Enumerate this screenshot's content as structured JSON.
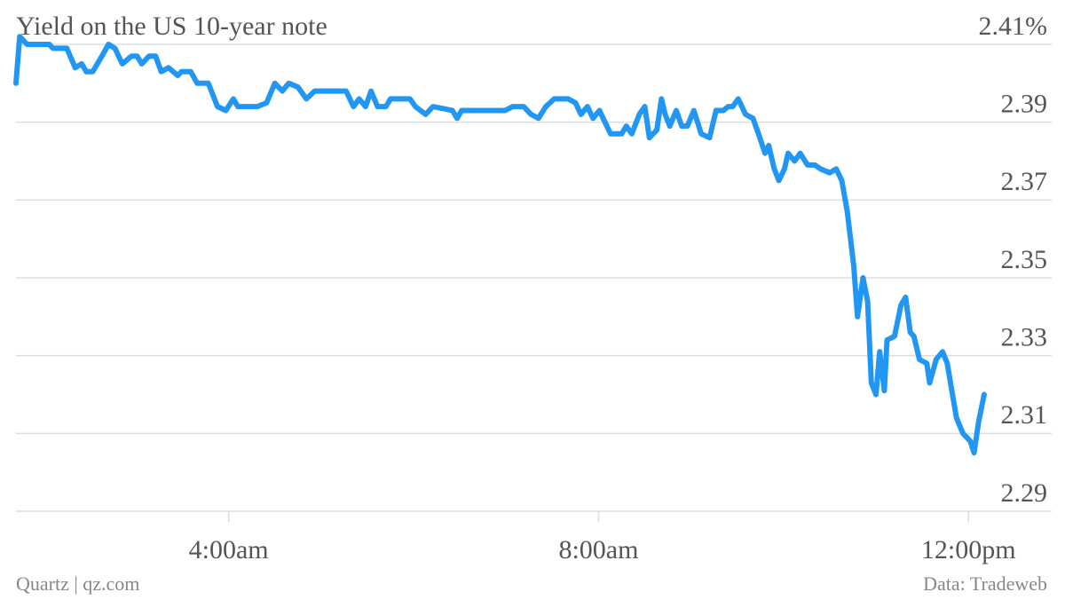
{
  "chart_data": {
    "type": "line",
    "title": "Yield on the US 10-year note",
    "credit": "Quartz | qz.com",
    "source": "Data: Tradeweb",
    "color": "#2196f3",
    "grid": true,
    "x": [
      1.7,
      1.74,
      1.82,
      2.06,
      2.1,
      2.25,
      2.34,
      2.41,
      2.46,
      2.53,
      2.63,
      2.7,
      2.77,
      2.85,
      2.95,
      3.01,
      3.06,
      3.14,
      3.21,
      3.27,
      3.35,
      3.45,
      3.49,
      3.59,
      3.66,
      3.78,
      3.88,
      3.97,
      4.05,
      4.1,
      4.26,
      4.31,
      4.41,
      4.5,
      4.58,
      4.65,
      4.75,
      4.84,
      4.93,
      5.27,
      5.35,
      5.41,
      5.48,
      5.54,
      5.61,
      5.7,
      5.75,
      5.96,
      6.02,
      6.13,
      6.21,
      6.42,
      6.47,
      6.52,
      6.99,
      7.07,
      7.19,
      7.27,
      7.35,
      7.43,
      7.52,
      7.6,
      7.67,
      7.75,
      7.81,
      7.88,
      7.94,
      8.01,
      8.05,
      8.13,
      8.25,
      8.3,
      8.36,
      8.44,
      8.5,
      8.55,
      8.63,
      8.68,
      8.72,
      8.77,
      8.84,
      8.9,
      8.96,
      9.03,
      9.11,
      9.2,
      9.27,
      9.35,
      9.4,
      9.45,
      9.51,
      9.59,
      9.67,
      9.73,
      9.8,
      9.84,
      9.9,
      9.95,
      10.01,
      10.05,
      10.12,
      10.18,
      10.26,
      10.34,
      10.4,
      10.5,
      10.57,
      10.63,
      10.69,
      10.76,
      10.8,
      10.86,
      10.91,
      10.95,
      11.0,
      11.04,
      11.09,
      11.12,
      11.2,
      11.27,
      11.32,
      11.37,
      11.41,
      11.47,
      11.55,
      11.58,
      11.65,
      11.72,
      11.77,
      11.82,
      11.87,
      11.94,
      12.02,
      12.06,
      12.11,
      12.17
    ],
    "values": [
      2.4,
      2.412,
      2.41,
      2.41,
      2.409,
      2.409,
      2.404,
      2.405,
      2.403,
      2.403,
      2.407,
      2.41,
      2.409,
      2.405,
      2.407,
      2.407,
      2.405,
      2.407,
      2.407,
      2.403,
      2.404,
      2.402,
      2.403,
      2.403,
      2.4,
      2.4,
      2.394,
      2.393,
      2.396,
      2.394,
      2.394,
      2.394,
      2.395,
      2.4,
      2.398,
      2.4,
      2.399,
      2.396,
      2.398,
      2.398,
      2.394,
      2.396,
      2.394,
      2.398,
      2.394,
      2.394,
      2.396,
      2.396,
      2.394,
      2.392,
      2.394,
      2.393,
      2.391,
      2.393,
      2.393,
      2.394,
      2.394,
      2.392,
      2.391,
      2.394,
      2.396,
      2.396,
      2.396,
      2.395,
      2.392,
      2.394,
      2.391,
      2.393,
      2.391,
      2.387,
      2.387,
      2.389,
      2.387,
      2.392,
      2.394,
      2.386,
      2.388,
      2.396,
      2.392,
      2.389,
      2.393,
      2.389,
      2.389,
      2.393,
      2.387,
      2.386,
      2.393,
      2.393,
      2.394,
      2.394,
      2.396,
      2.392,
      2.391,
      2.387,
      2.382,
      2.384,
      2.378,
      2.375,
      2.378,
      2.382,
      2.38,
      2.382,
      2.379,
      2.379,
      2.378,
      2.377,
      2.378,
      2.375,
      2.367,
      2.353,
      2.34,
      2.35,
      2.344,
      2.323,
      2.32,
      2.331,
      2.321,
      2.334,
      2.335,
      2.343,
      2.345,
      2.336,
      2.335,
      2.329,
      2.328,
      2.323,
      2.329,
      2.331,
      2.328,
      2.321,
      2.314,
      2.31,
      2.308,
      2.305,
      2.313,
      2.32
    ],
    "xlim": [
      1.7,
      12.9
    ],
    "xticks": [
      {
        "value": 4,
        "label": "4:00am"
      },
      {
        "value": 8,
        "label": "8:00am"
      },
      {
        "value": 12,
        "label": "12:00pm"
      }
    ],
    "ylim": [
      2.29,
      2.41
    ],
    "yticks": [
      2.29,
      2.31,
      2.33,
      2.35,
      2.37,
      2.39,
      {
        "value": 2.41,
        "label": "2.41%"
      }
    ]
  }
}
